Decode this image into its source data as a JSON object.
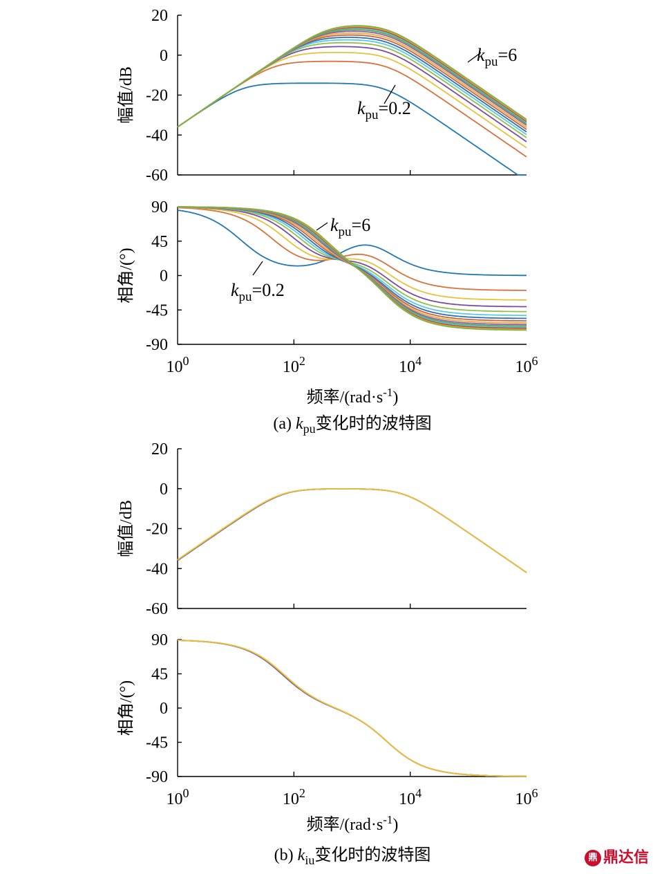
{
  "figure": {
    "caption_a": {
      "prefix": "(a)  ",
      "var": "k",
      "sub": "pu",
      "suffix": "变化时的波特图"
    },
    "caption_b": {
      "prefix": "(b)  ",
      "var": "k",
      "sub": "iu",
      "suffix": "变化时的波特图"
    },
    "xlabel": {
      "main": "频率/(rad·s",
      "sup": "-1",
      "end": ")"
    },
    "watermark": "鼎达信"
  },
  "chart_data": [
    {
      "type": "line",
      "panel": "a-magnitude",
      "ylabel": "幅值/dB",
      "x_scale": "log",
      "xlim": [
        1,
        1000000
      ],
      "ylim": [
        -60,
        20
      ],
      "yticks": [
        "20",
        "0",
        "-20",
        "-40",
        "-60"
      ],
      "grid": false,
      "annotations": [
        {
          "var": "k",
          "sub": "pu",
          "text": "=6"
        },
        {
          "var": "k",
          "sub": "pu",
          "text": "=0.2"
        }
      ],
      "series": [
        {
          "color": "#1f77b4",
          "plateau_db": -14
        },
        {
          "color": "#d9713a",
          "plateau_db": -3
        },
        {
          "color": "#e8c23a",
          "plateau_db": 1.5
        },
        {
          "color": "#7e4a9e",
          "plateau_db": 4.5
        },
        {
          "color": "#8ec04b",
          "plateau_db": 6.5
        },
        {
          "color": "#5bc7e8",
          "plateau_db": 8
        },
        {
          "color": "#2c6fb7",
          "plateau_db": 9.3
        },
        {
          "color": "#c8643a",
          "plateau_db": 10.5
        },
        {
          "color": "#f0a93a",
          "plateau_db": 11.5
        },
        {
          "color": "#8a5fb0",
          "plateau_db": 12.5
        },
        {
          "color": "#5aa84a",
          "plateau_db": 13.3
        },
        {
          "color": "#59c1e0",
          "plateau_db": 14
        },
        {
          "color": "#b34a3e",
          "plateau_db": 14.5
        },
        {
          "color": "#e8a23a",
          "plateau_db": 15
        },
        {
          "color": "#7cb342",
          "plateau_db": 15.5
        }
      ]
    },
    {
      "type": "line",
      "panel": "a-phase",
      "ylabel": "相角/(°)",
      "x_scale": "log",
      "xlim": [
        1,
        1000000
      ],
      "ylim": [
        -90,
        90
      ],
      "yticks": [
        "90",
        "45",
        "0",
        "-45",
        "-90"
      ],
      "grid": false,
      "annotations": [
        {
          "var": "k",
          "sub": "pu",
          "text": "=6"
        },
        {
          "var": "k",
          "sub": "pu",
          "text": "=0.2"
        }
      ]
    },
    {
      "type": "line",
      "panel": "b-magnitude",
      "ylabel": "幅值/dB",
      "x_scale": "log",
      "xlim": [
        1,
        1000000
      ],
      "ylim": [
        -60,
        20
      ],
      "yticks": [
        "20",
        "0",
        "-20",
        "-40",
        "-60"
      ],
      "grid": false,
      "series": [
        {
          "color": "#e8c23a",
          "points": [
            [
              1,
              -36
            ],
            [
              10,
              -17
            ],
            [
              100,
              -1
            ],
            [
              1000,
              0
            ],
            [
              5000,
              -3
            ],
            [
              100000,
              -22
            ],
            [
              1000000,
              -42
            ]
          ]
        }
      ]
    },
    {
      "type": "line",
      "panel": "b-phase",
      "ylabel": "相角/(°)",
      "x_scale": "log",
      "xlim": [
        1,
        1000000
      ],
      "ylim": [
        -90,
        90
      ],
      "yticks": [
        "90",
        "45",
        "0",
        "-45",
        "-90"
      ],
      "xticks": [
        {
          "base": "10",
          "exp": "0"
        },
        {
          "base": "10",
          "exp": "2"
        },
        {
          "base": "10",
          "exp": "4"
        },
        {
          "base": "10",
          "exp": "6"
        }
      ],
      "grid": false,
      "series": [
        {
          "color": "#e8c23a",
          "points": [
            [
              1,
              89
            ],
            [
              10,
              80
            ],
            [
              50,
              45
            ],
            [
              100,
              20
            ],
            [
              1000,
              -5
            ],
            [
              5000,
              -30
            ],
            [
              10000,
              -55
            ],
            [
              100000,
              -87
            ],
            [
              1000000,
              -90
            ]
          ]
        }
      ]
    }
  ]
}
